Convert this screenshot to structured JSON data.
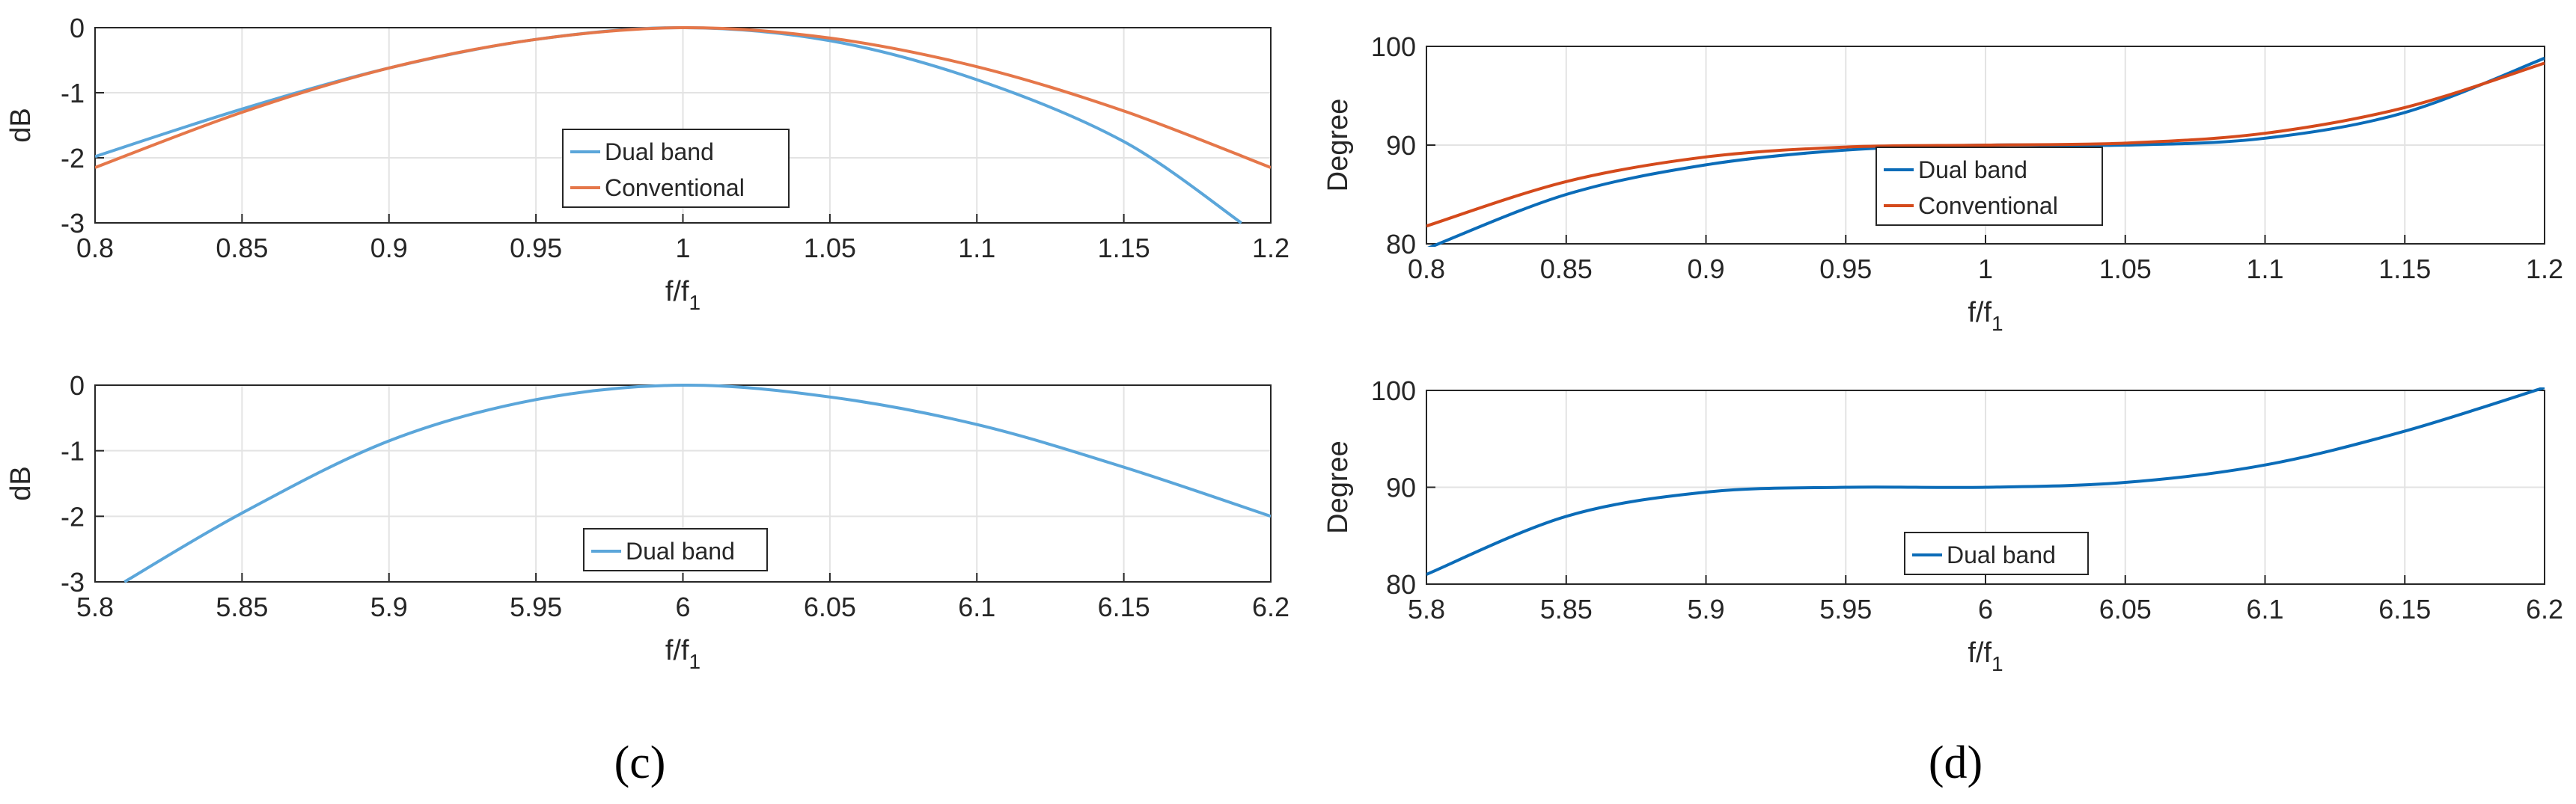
{
  "panels": {
    "c_label": "(c)",
    "d_label": "(d)"
  },
  "chart_data": [
    {
      "id": "c-top",
      "type": "line",
      "xlabel": "f/f",
      "xlabel_sub": "1",
      "ylabel": "dB",
      "xlim": [
        0.8,
        1.2
      ],
      "ylim": [
        -3,
        0
      ],
      "xticks": [
        "0.8",
        "0.85",
        "0.9",
        "0.95",
        "1",
        "1.05",
        "1.1",
        "1.15",
        "1.2"
      ],
      "yticks": [
        "0",
        "-1",
        "-2",
        "-3"
      ],
      "grid": true,
      "legend_position": "center",
      "series": [
        {
          "name": "Dual band",
          "color": "#5BA6DA",
          "x": [
            0.8,
            0.85,
            0.9,
            0.95,
            1.0,
            1.05,
            1.1,
            1.15,
            1.19
          ],
          "y": [
            -1.98,
            -1.25,
            -0.62,
            -0.18,
            0.0,
            -0.2,
            -0.8,
            -1.75,
            -3.0
          ]
        },
        {
          "name": "Conventional",
          "color": "#E5774A",
          "x": [
            0.8,
            0.85,
            0.9,
            0.95,
            1.0,
            1.05,
            1.1,
            1.15,
            1.2
          ],
          "y": [
            -2.15,
            -1.3,
            -0.62,
            -0.18,
            0.0,
            -0.16,
            -0.6,
            -1.28,
            -2.15
          ]
        }
      ]
    },
    {
      "id": "c-bottom",
      "type": "line",
      "xlabel": "f/f",
      "xlabel_sub": "1",
      "ylabel": "dB",
      "xlim": [
        5.8,
        6.2
      ],
      "ylim": [
        -3,
        0
      ],
      "xticks": [
        "5.8",
        "5.85",
        "5.9",
        "5.95",
        "6",
        "6.05",
        "6.1",
        "6.15",
        "6.2"
      ],
      "yticks": [
        "0",
        "-1",
        "-2",
        "-3"
      ],
      "grid": true,
      "legend_position": "bottom-center",
      "series": [
        {
          "name": "Dual band",
          "color": "#5BA6DA",
          "x": [
            5.81,
            5.85,
            5.9,
            5.95,
            6.0,
            6.05,
            6.1,
            6.15,
            6.2
          ],
          "y": [
            -3.0,
            -1.95,
            -0.85,
            -0.22,
            0.0,
            -0.18,
            -0.6,
            -1.25,
            -2.0
          ]
        }
      ]
    },
    {
      "id": "d-top",
      "type": "line",
      "xlabel": "f/f",
      "xlabel_sub": "1",
      "ylabel": "Degree",
      "xlim": [
        0.8,
        1.2
      ],
      "ylim": [
        80,
        100
      ],
      "xticks": [
        "0.8",
        "0.85",
        "0.9",
        "0.95",
        "1",
        "1.05",
        "1.1",
        "1.15",
        "1.2"
      ],
      "yticks": [
        "100",
        "90",
        "80"
      ],
      "grid": true,
      "legend_position": "center",
      "series": [
        {
          "name": "Dual band",
          "color": "#0B6CB8",
          "x": [
            0.8,
            0.85,
            0.9,
            0.95,
            1.0,
            1.05,
            1.1,
            1.15,
            1.2
          ],
          "y": [
            79.5,
            85.0,
            88.0,
            89.5,
            90.0,
            90.0,
            90.7,
            93.3,
            98.8
          ]
        },
        {
          "name": "Conventional",
          "color": "#D44A1C",
          "x": [
            0.8,
            0.85,
            0.9,
            0.95,
            1.0,
            1.05,
            1.1,
            1.15,
            1.2
          ],
          "y": [
            81.8,
            86.3,
            88.8,
            89.8,
            90.0,
            90.2,
            91.2,
            93.8,
            98.3
          ]
        }
      ]
    },
    {
      "id": "d-bottom",
      "type": "line",
      "xlabel": "f/f",
      "xlabel_sub": "1",
      "ylabel": "Degree",
      "xlim": [
        5.8,
        6.2
      ],
      "ylim": [
        80,
        100
      ],
      "xticks": [
        "5.8",
        "5.85",
        "5.9",
        "5.95",
        "6",
        "6.05",
        "6.1",
        "6.15",
        "6.2"
      ],
      "yticks": [
        "100",
        "90",
        "80"
      ],
      "grid": true,
      "legend_position": "bottom-center",
      "series": [
        {
          "name": "Dual band",
          "color": "#0B6CB8",
          "x": [
            5.8,
            5.85,
            5.9,
            5.95,
            6.0,
            6.05,
            6.1,
            6.15,
            6.2
          ],
          "y": [
            81.0,
            87.0,
            89.5,
            90.0,
            90.0,
            90.5,
            92.3,
            95.8,
            100.3
          ]
        }
      ]
    }
  ]
}
